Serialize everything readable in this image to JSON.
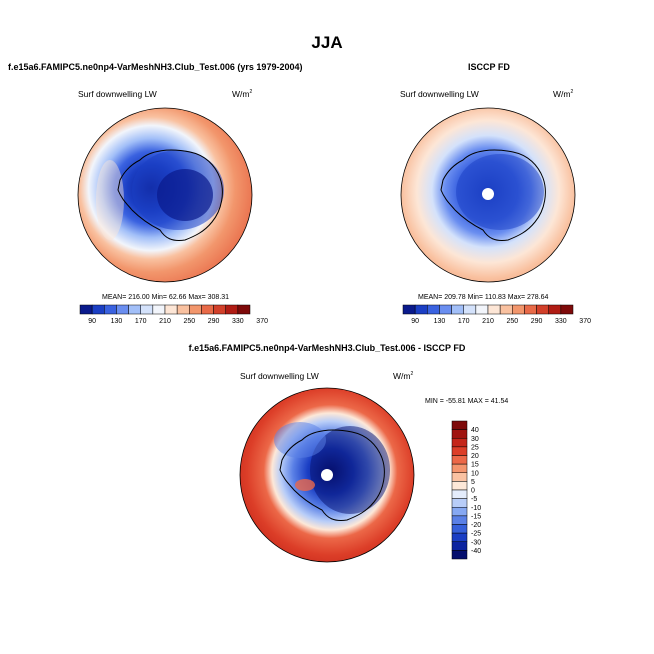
{
  "title": "JJA",
  "panels": [
    {
      "id": "model",
      "heading": "f.e15a6.FAMIPC5.ne0np4-VarMeshNH3.Club_Test.006 (yrs 1979-2004)",
      "variable": "Surf downwelling LW",
      "units": "W/m",
      "units_sup": "2",
      "stats": "MEAN= 216.00  Min=  62.66  Max= 308.31",
      "colorbar_labels": [
        "90",
        "130",
        "170",
        "210",
        "250",
        "290",
        "330",
        "370"
      ]
    },
    {
      "id": "obs",
      "heading": "ISCCP FD",
      "variable": "Surf downwelling LW",
      "units": "W/m",
      "units_sup": "2",
      "stats": "MEAN= 209.78  Min= 110.83  Max= 278.64",
      "colorbar_labels": [
        "90",
        "130",
        "170",
        "210",
        "250",
        "290",
        "330",
        "370"
      ]
    },
    {
      "id": "diff",
      "heading": "f.e15a6.FAMIPC5.ne0np4-VarMeshNH3.Club_Test.006 - ISCCP FD",
      "variable": "Surf downwelling LW",
      "units": "W/m",
      "units_sup": "2",
      "stats": "MIN = -55.81  MAX =  41.54",
      "colorbar_labels": [
        "40",
        "30",
        "25",
        "20",
        "15",
        "10",
        "5",
        "0",
        "-5",
        "-10",
        "-15",
        "-20",
        "-25",
        "-30",
        "-40"
      ]
    }
  ],
  "colors": {
    "abs_scale": [
      "#0a1a8c",
      "#1b3fc4",
      "#3a62e0",
      "#6a8ef0",
      "#a2bff8",
      "#d4e2fb",
      "#f2f5fb",
      "#fde6d6",
      "#f9c1a0",
      "#f2966c",
      "#e86a48",
      "#d2402a",
      "#b01c14",
      "#7e0a0a"
    ],
    "diff_scale": [
      "#7e0a0a",
      "#a01410",
      "#c4261a",
      "#dc3e28",
      "#ec6848",
      "#f4956e",
      "#fac2a2",
      "#fde8d8",
      "#e4ecfb",
      "#b8cdf8",
      "#86a8f2",
      "#5a80e6",
      "#3660da",
      "#1a3ec4",
      "#0c24a0",
      "#050f6e"
    ],
    "coast": "#000000"
  }
}
